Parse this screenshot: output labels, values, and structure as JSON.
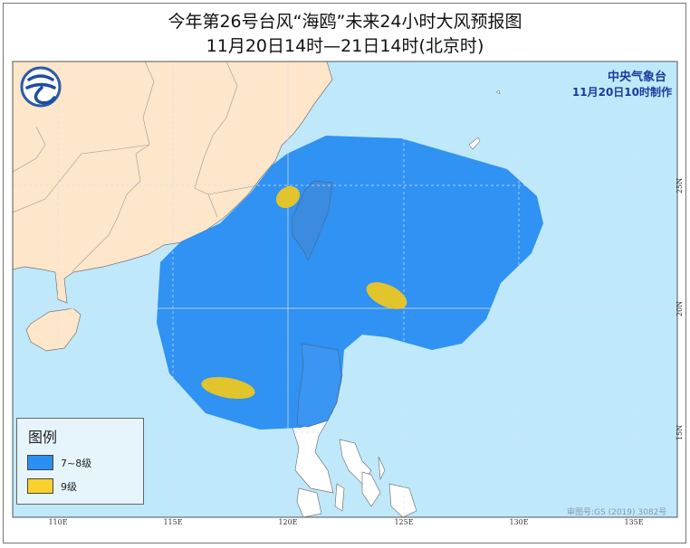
{
  "title": "今年第26号台风“海鸥”未来24小时大风预报图",
  "subtitle": "11月20日14时—21日14时(北京时)",
  "agency": {
    "name": "中央气象台",
    "issued": "11月20日10时制作"
  },
  "logo": {
    "icon": "cma-logo-icon"
  },
  "legend": {
    "title": "图例",
    "items": [
      {
        "label": "7~8级",
        "color": "#2b8ef2"
      },
      {
        "label": "9级",
        "color": "#e2c42c"
      }
    ]
  },
  "axes": {
    "longitude_labels": [
      "110E",
      "115E",
      "120E",
      "125E",
      "130E",
      "135E"
    ],
    "latitude_labels": [
      "25N",
      "20N",
      "15N"
    ]
  },
  "approval_number": "审图号:GS (2019) 3082号",
  "colors": {
    "sea": "#bfe8fb",
    "land_china": "#fde6c9",
    "land_other": "#ffffff",
    "gale_7_8": "#2b8ef2",
    "gale_9": "#e2c42c"
  }
}
